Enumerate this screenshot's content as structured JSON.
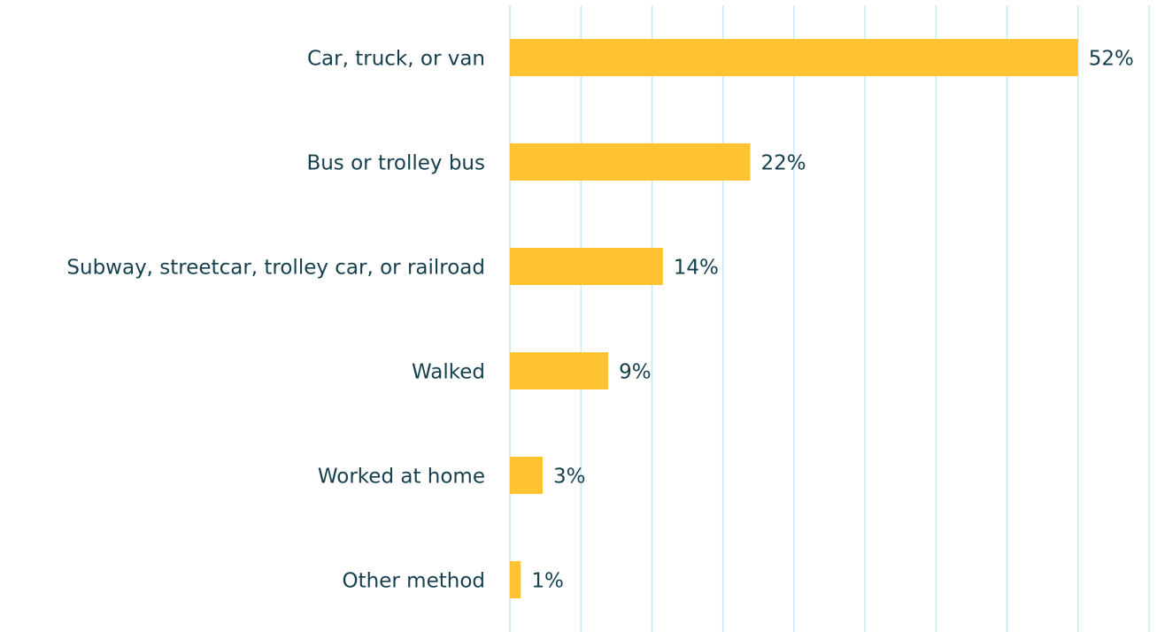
{
  "chart_data": {
    "type": "hbar",
    "categories": [
      "Car, truck, or van",
      "Bus or trolley bus",
      "Subway, streetcar, trolley car, or railroad",
      "Walked",
      "Worked at home",
      "Other method"
    ],
    "values": [
      52,
      22,
      14,
      9,
      3,
      1
    ],
    "value_labels": [
      "52%",
      "22%",
      "14%",
      "9%",
      "3%",
      "1%"
    ],
    "color": "#ffc332",
    "xlim": [
      0,
      58.5
    ],
    "xticks": [
      0,
      6.5,
      13,
      19.5,
      26,
      32.5,
      39,
      45.5,
      52,
      58.5
    ],
    "grid": true
  }
}
